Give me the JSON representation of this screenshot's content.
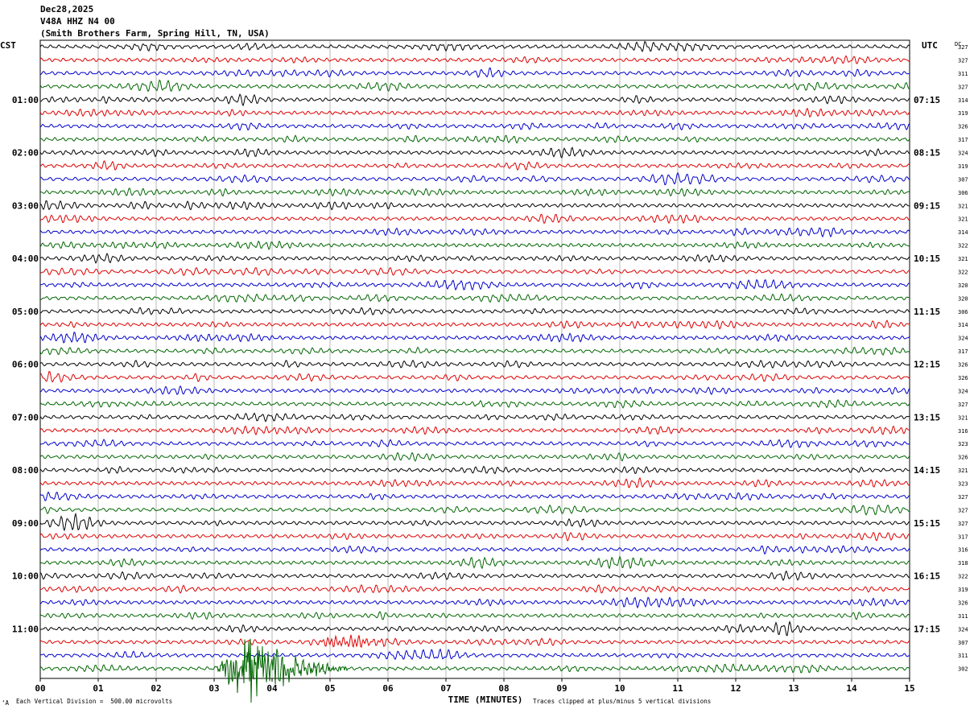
{
  "header": {
    "date": "Dec28,2025",
    "station": "V48A HHZ N4 00",
    "location": "(Smith Brothers Farm, Spring Hill, TN, USA)"
  },
  "footer": {
    "scale": "Each Vertical Division =  500.00 microvolts",
    "clip_note": "Traces clipped at plus/minus 5 vertical divisions",
    "corner_mark": "‘A"
  },
  "chart_data": {
    "type": "helicorder",
    "xlabel": "TIME (MINUTES)",
    "x_ticks": [
      "00",
      "01",
      "02",
      "03",
      "04",
      "05",
      "06",
      "07",
      "08",
      "09",
      "10",
      "11",
      "12",
      "13",
      "14",
      "15"
    ],
    "xlim": [
      0,
      15
    ],
    "left_label_title": "CST",
    "right_label_title": "UTC",
    "dc_label_title": "DC",
    "left_hour_labels": [
      "01:00",
      "02:00",
      "03:00",
      "04:00",
      "05:00",
      "06:00",
      "07:00",
      "08:00",
      "09:00",
      "10:00",
      "11:00"
    ],
    "right_hour_labels": [
      "07:15",
      "08:15",
      "09:15",
      "10:15",
      "11:15",
      "12:15",
      "13:15",
      "14:15",
      "15:15",
      "16:15",
      "17:15"
    ],
    "trace_colors": [
      "#000000",
      "#dd0000",
      "#0000cc",
      "#006600"
    ],
    "dc_offsets": [
      "327",
      "327",
      "311",
      "327",
      "314",
      "319",
      "326",
      "317",
      "324",
      "319",
      "307",
      "306",
      "321",
      "321",
      "314",
      "322",
      "321",
      "322",
      "320",
      "320",
      "306",
      "314",
      "324",
      "317",
      "326",
      "326",
      "324",
      "327",
      "321",
      "316",
      "323",
      "326",
      "321",
      "323",
      "327",
      "327",
      "327",
      "317",
      "316",
      "318",
      "322",
      "319",
      "326",
      "311",
      "324",
      "307",
      "311",
      "302"
    ],
    "event": {
      "trace_index": 47,
      "start_minute": 3.0,
      "end_minute": 5.3,
      "peak_minute": 3.65,
      "note": "large clipped arrival on last trace"
    },
    "secondary_event": {
      "trace_index": 45,
      "start_minute": 4.6,
      "end_minute": 6.0
    }
  }
}
